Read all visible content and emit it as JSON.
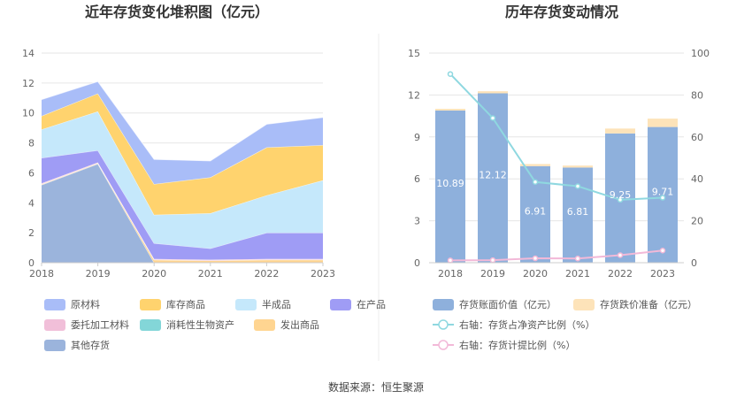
{
  "source": "数据来源：恒生聚源",
  "chart_data": [
    {
      "type": "area",
      "title": "近年存货变化堆积图（亿元）",
      "x": [
        "2018",
        "2019",
        "2020",
        "2021",
        "2022",
        "2023"
      ],
      "ylim": [
        0,
        14
      ],
      "yticks": [
        0,
        2,
        4,
        6,
        8,
        10,
        12,
        14
      ],
      "grid": true,
      "legend_position": "bottom",
      "series": [
        {
          "name": "其他存货",
          "color": "#9bb4dc",
          "values": [
            5.2,
            6.6,
            0.0,
            0.0,
            0.0,
            0.0
          ]
        },
        {
          "name": "发出商品",
          "color": "#ffd591",
          "values": [
            0.05,
            0.05,
            0.2,
            0.15,
            0.2,
            0.2
          ]
        },
        {
          "name": "消耗性生物资产",
          "color": "#83d6d8",
          "values": [
            0.0,
            0.0,
            0.0,
            0.0,
            0.0,
            0.0
          ]
        },
        {
          "name": "委托加工材料",
          "color": "#f1bfd9",
          "values": [
            0.05,
            0.05,
            0.05,
            0.05,
            0.05,
            0.05
          ]
        },
        {
          "name": "在产品",
          "color": "#9f9cf5",
          "values": [
            1.7,
            0.8,
            1.05,
            0.75,
            1.75,
            1.75
          ]
        },
        {
          "name": "半成品",
          "color": "#c5e8fb",
          "values": [
            1.9,
            2.6,
            1.9,
            2.35,
            2.5,
            3.5
          ]
        },
        {
          "name": "库存商品",
          "color": "#ffd36e",
          "values": [
            0.9,
            1.2,
            2.05,
            2.4,
            3.2,
            2.35
          ]
        },
        {
          "name": "原材料",
          "color": "#a9bdf8",
          "values": [
            1.1,
            0.8,
            1.65,
            1.1,
            1.55,
            1.85
          ]
        }
      ],
      "legend_order": [
        "原材料",
        "库存商品",
        "半成品",
        "在产品",
        "委托加工材料",
        "消耗性生物资产",
        "发出商品",
        "其他存货"
      ]
    },
    {
      "type": "bar",
      "title": "历年存货变动情况",
      "x": [
        "2018",
        "2019",
        "2020",
        "2021",
        "2022",
        "2023"
      ],
      "ylim": [
        0,
        15
      ],
      "yticks": [
        0,
        3,
        6,
        9,
        12,
        15
      ],
      "y2lim": [
        0,
        100
      ],
      "y2ticks": [
        0,
        20,
        40,
        60,
        80,
        100
      ],
      "grid": true,
      "legend_position": "bottom",
      "series": [
        {
          "name": "存货账面价值（亿元）",
          "kind": "bar",
          "color": "#8eb0dc",
          "values": [
            10.89,
            12.12,
            6.91,
            6.81,
            9.25,
            9.71
          ],
          "labels": [
            "10.89",
            "12.12",
            "6.91",
            "6.81",
            "9.25",
            "9.71"
          ]
        },
        {
          "name": "存货跌价准备（亿元）",
          "kind": "bar",
          "color": "#fde3b9",
          "values": [
            0.12,
            0.15,
            0.15,
            0.14,
            0.35,
            0.6
          ]
        },
        {
          "name": "右轴：存货占净资产比例（%）",
          "kind": "line",
          "axis": "right",
          "color": "#8fd8e0",
          "values": [
            90,
            69,
            38.5,
            36.5,
            30,
            31
          ]
        },
        {
          "name": "右轴：存货计提比例（%）",
          "kind": "line",
          "axis": "right",
          "color": "#f2b9d8",
          "values": [
            1.1,
            1.2,
            2.1,
            2.0,
            3.6,
            5.8
          ]
        }
      ]
    }
  ]
}
